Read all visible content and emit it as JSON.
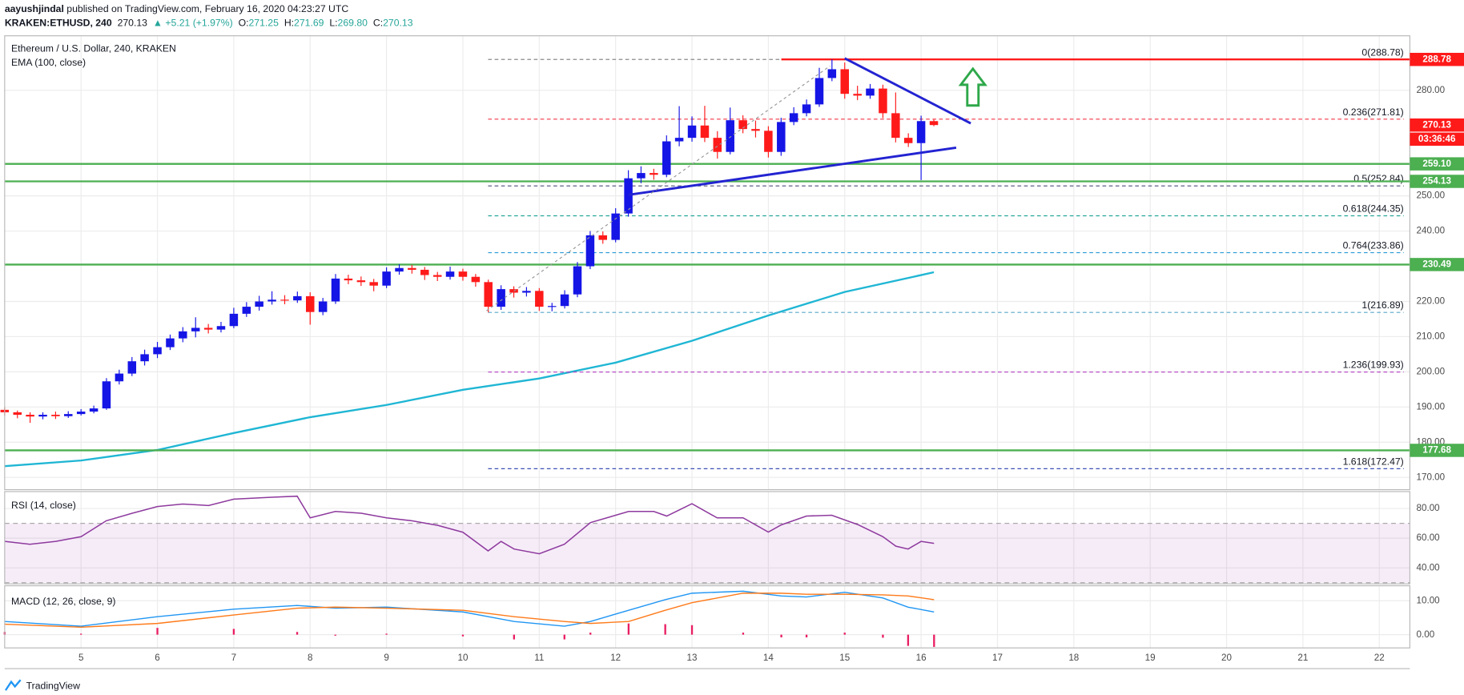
{
  "header": {
    "author": "aayushjindal",
    "published": "published on TradingView.com, February 16, 2020 04:23:27 UTC",
    "symbol": "KRAKEN:ETHUSD, 240",
    "price": "270.13",
    "change": "▲ +5.21 (+1.97%)",
    "ohlc": [
      {
        "label": "O:",
        "value": "271.25"
      },
      {
        "label": "H:",
        "value": "271.69"
      },
      {
        "label": "L:",
        "value": "269.80"
      },
      {
        "label": "C:",
        "value": "270.13"
      }
    ]
  },
  "footer": "TradingView",
  "chart_data": [
    {
      "type": "candlestick",
      "title": "Ethereum / U.S. Dollar, 240, KRAKEN",
      "up_color": "#1515e6",
      "down_color": "#ff1a1a",
      "x": [
        4,
        4.167,
        4.333,
        4.5,
        4.667,
        4.833,
        5,
        5.167,
        5.333,
        5.5,
        5.667,
        5.833,
        6,
        6.167,
        6.333,
        6.5,
        6.667,
        6.833,
        7,
        7.167,
        7.333,
        7.5,
        7.667,
        7.833,
        8,
        8.167,
        8.333,
        8.5,
        8.667,
        8.833,
        9,
        9.167,
        9.333,
        9.5,
        9.667,
        9.833,
        10,
        10.167,
        10.333,
        10.5,
        10.667,
        10.833,
        11,
        11.167,
        11.333,
        11.5,
        11.667,
        11.833,
        12,
        12.167,
        12.333,
        12.5,
        12.667,
        12.833,
        13,
        13.167,
        13.333,
        13.5,
        13.667,
        13.833,
        14,
        14.167,
        14.333,
        14.5,
        14.667,
        14.833,
        15,
        15.167,
        15.333,
        15.5,
        15.667,
        15.833,
        16,
        16.167
      ],
      "open": [
        189.2,
        188.5,
        187.8,
        187.3,
        187.8,
        187.4,
        188.0,
        188.7,
        189.6,
        197.3,
        199.5,
        203,
        205,
        207,
        209.5,
        211.5,
        212.5,
        212,
        213,
        216.5,
        218.5,
        220,
        220.5,
        220.3,
        221.5,
        217,
        220,
        226.5,
        226,
        225.5,
        224.5,
        228.5,
        229.5,
        229,
        227.5,
        227,
        228.5,
        227,
        225.5,
        218.5,
        223.5,
        222.5,
        223,
        218.5,
        218.7,
        222,
        230,
        238.8,
        237.5,
        245,
        255,
        256.5,
        256,
        265.5,
        266.5,
        270,
        266.5,
        262.5,
        271.5,
        269,
        268.5,
        262.5,
        271,
        273.5,
        276,
        283.5,
        286,
        279,
        278.5,
        280.5,
        273.5,
        266.5,
        265,
        271.25
      ],
      "high": [
        190,
        189,
        188.5,
        188.5,
        188.7,
        188.8,
        189.4,
        190.4,
        198.2,
        200.6,
        204.2,
        206.3,
        208.5,
        210.6,
        212.7,
        215.5,
        213.6,
        214.2,
        218.2,
        219.8,
        221.6,
        222.9,
        221.8,
        222.8,
        222.6,
        221,
        227.8,
        227.6,
        227.1,
        226.4,
        229.7,
        230.6,
        230.4,
        229.8,
        228.4,
        229.9,
        229.3,
        227.8,
        226.2,
        224.6,
        224.3,
        224.1,
        223.8,
        219.6,
        223.2,
        231.2,
        240,
        239.9,
        246.5,
        257.3,
        258.4,
        257.7,
        267.2,
        275.5,
        272.6,
        275.6,
        268.4,
        275.1,
        272.9,
        271.4,
        269.8,
        272.2,
        275.2,
        277.4,
        286.4,
        288.78,
        287.9,
        281.3,
        281.8,
        281.6,
        279.4,
        267.8,
        272.8,
        271.69
      ],
      "low": [
        187.5,
        186.8,
        185.5,
        186.5,
        186.6,
        186.9,
        187.6,
        188.2,
        189.2,
        196.4,
        198.8,
        201.8,
        203.9,
        206.2,
        208.4,
        209.8,
        210.9,
        211.2,
        212.4,
        215.6,
        217.4,
        219.1,
        219.2,
        219.6,
        213.4,
        216.1,
        219.3,
        224.9,
        224.4,
        222.9,
        223.8,
        227.6,
        227.9,
        226.1,
        225.8,
        226.2,
        225.9,
        224.2,
        216.89,
        217.6,
        221.1,
        221.4,
        217.3,
        217.2,
        218,
        221.2,
        229.2,
        236.4,
        236.8,
        244.1,
        253.6,
        254.6,
        255.3,
        264.1,
        265.4,
        265.3,
        260.6,
        261.8,
        267.8,
        266.6,
        260.9,
        261.4,
        270.1,
        272.6,
        275.3,
        282.6,
        277.6,
        277.2,
        277.6,
        272.1,
        265.2,
        263.9,
        254.5,
        269.8
      ],
      "close": [
        188.5,
        187.8,
        187.3,
        187.8,
        187.4,
        188.0,
        188.7,
        189.6,
        197.3,
        199.5,
        203,
        205,
        207,
        209.5,
        211.5,
        212.5,
        212,
        213,
        216.5,
        218.5,
        220,
        220.5,
        220.3,
        221.5,
        217,
        220,
        226.5,
        226,
        225.5,
        224.5,
        228.5,
        229.5,
        229,
        227.5,
        227,
        228.5,
        227,
        225.5,
        218.5,
        223.5,
        222.5,
        223,
        218.5,
        218.7,
        222,
        230,
        238.8,
        237.5,
        245,
        255,
        256.5,
        256,
        265.5,
        266.5,
        270,
        266.5,
        262.5,
        271.5,
        269,
        268.5,
        262.5,
        271,
        273.5,
        276,
        283.5,
        286,
        279,
        278.5,
        280.5,
        273.5,
        266.5,
        265,
        271.25,
        270.13
      ],
      "ema": {
        "name": "EMA (100, close)",
        "color": "#1fb6d4",
        "x": [
          4,
          5,
          6,
          7,
          8,
          9,
          10,
          11,
          12,
          13,
          14,
          15,
          16,
          16.167
        ],
        "values": [
          173.2,
          174.8,
          177.8,
          182.6,
          187.1,
          190.6,
          194.9,
          198.1,
          202.6,
          208.8,
          216,
          222.7,
          227.5,
          228.3
        ]
      },
      "fib": [
        {
          "label": "0(288.78)",
          "value": 288.78,
          "color": "#8a8a8a",
          "x_range": [
            10.33,
            22.32
          ]
        },
        {
          "label": "0.236(271.81)",
          "value": 271.81,
          "color": "#f23645",
          "x_range": [
            10.33,
            22.32
          ]
        },
        {
          "label": "0.5(252.84)",
          "value": 252.84,
          "color": "#4a4f7a",
          "x_range": [
            10.33,
            22.32
          ]
        },
        {
          "label": "0.618(244.35)",
          "value": 244.35,
          "color": "#26a69a",
          "x_range": [
            10.33,
            22.32
          ]
        },
        {
          "label": "0.764(233.86)",
          "value": 233.86,
          "color": "#2a9bd6",
          "x_range": [
            10.33,
            22.32
          ]
        },
        {
          "label": "1(216.89)",
          "value": 216.89,
          "color": "#5aa8c8",
          "x_range": [
            10.33,
            22.32
          ]
        },
        {
          "label": "1.236(199.93)",
          "value": 199.93,
          "color": "#b33bc2",
          "x_range": [
            10.33,
            22.32
          ]
        },
        {
          "label": "1.618(172.47)",
          "value": 172.47,
          "color": "#3f51b5",
          "x_range": [
            10.33,
            22.32
          ]
        }
      ],
      "levels": [
        {
          "value": 288.78,
          "label": "288.78",
          "color": "#ff1a1a",
          "x_start": 14.17
        },
        {
          "value": 259.1,
          "label": "259.10",
          "color": "#4caf50"
        },
        {
          "value": 254.13,
          "label": "254.13",
          "color": "#4caf50"
        },
        {
          "value": 230.49,
          "label": "230.49",
          "color": "#4caf50"
        },
        {
          "value": 177.68,
          "label": "177.68",
          "color": "#4caf50"
        }
      ],
      "last_price": {
        "value": 270.13,
        "label": "270.13",
        "color": "#ff1a1a"
      },
      "countdown": "03:36:46",
      "trendlines": [
        {
          "x": [
            15.0,
            16.65
          ],
          "values": [
            289.1,
            270.6
          ]
        },
        {
          "x": [
            12.17,
            16.46
          ],
          "values": [
            250.3,
            263.7
          ]
        }
      ],
      "trendline_color": "#2323d2",
      "xlim": [
        4.0,
        22.4
      ],
      "xticks": [
        5,
        6,
        7,
        8,
        9,
        10,
        11,
        12,
        13,
        14,
        15,
        16,
        17,
        18,
        19,
        20,
        21,
        22
      ],
      "ylim": [
        166.5,
        295.5
      ],
      "yticks": [
        {
          "value": 170,
          "label": "170.00"
        },
        {
          "value": 180,
          "label": "180.00"
        },
        {
          "value": 190,
          "label": "190.00"
        },
        {
          "value": 200,
          "label": "200.00"
        },
        {
          "value": 210,
          "label": "210.00"
        },
        {
          "value": 220,
          "label": "220.00"
        },
        {
          "value": 240,
          "label": "240.00"
        },
        {
          "value": 250,
          "label": "250.00"
        },
        {
          "value": 280,
          "label": "280.00"
        }
      ],
      "grid": true
    },
    {
      "type": "line",
      "title": "RSI (14, close)",
      "color": "#8e3a9e",
      "band": [
        30,
        70
      ],
      "band_color": "#9c27b0",
      "x": [
        4,
        4.33,
        4.67,
        5,
        5.33,
        5.67,
        6,
        6.33,
        6.67,
        7,
        7.5,
        7.83,
        8,
        8.33,
        8.67,
        9,
        9.33,
        9.67,
        10,
        10.33,
        10.5,
        10.67,
        11,
        11.33,
        11.67,
        12.17,
        12.5,
        12.67,
        13,
        13.33,
        13.67,
        14,
        14.17,
        14.5,
        14.83,
        15.17,
        15.5,
        15.67,
        15.83,
        16,
        16.17
      ],
      "values": [
        57.8,
        55.9,
        57.8,
        61,
        71.7,
        76.8,
        81.3,
        83,
        82,
        86.3,
        87.6,
        88.3,
        73.7,
        78,
        76.8,
        73.7,
        71.7,
        68.6,
        64,
        51.4,
        57.8,
        52.7,
        49.5,
        55.9,
        70.5,
        78,
        78,
        74.9,
        83.2,
        73.7,
        73.7,
        64.1,
        69,
        74.9,
        75.5,
        69.2,
        61,
        54.6,
        52.7,
        57.8,
        56.5
      ],
      "ylim": [
        29.2,
        91.4
      ],
      "yticks": [
        {
          "value": 40,
          "label": "40.00"
        },
        {
          "value": 60,
          "label": "60.00"
        },
        {
          "value": 80,
          "label": "80.00"
        }
      ],
      "grid": true
    },
    {
      "type": "macd",
      "title": "MACD (12, 26, close, 9)",
      "x": [
        4,
        5,
        6,
        7,
        7.83,
        8.33,
        9,
        10,
        10.67,
        11.33,
        11.67,
        12.17,
        12.65,
        13,
        13.67,
        14.17,
        14.5,
        15,
        15.5,
        15.83,
        16.17
      ],
      "series": [
        {
          "color": "#2196f3",
          "values": [
            3.9,
            2.5,
            5.3,
            7.5,
            8.6,
            7.8,
            8.1,
            6.7,
            3.9,
            2.5,
            3.9,
            7.2,
            10.3,
            12.2,
            12.8,
            11.4,
            11.1,
            12.5,
            10.8,
            8.1,
            6.7
          ]
        },
        {
          "color": "#ff7a1a",
          "values": [
            3.1,
            2.2,
            3.3,
            5.8,
            7.8,
            8.1,
            7.8,
            7.2,
            5.3,
            3.9,
            3.3,
            3.9,
            7.2,
            9.4,
            12.2,
            12.2,
            11.9,
            11.9,
            11.7,
            11.4,
            10.3
          ]
        }
      ],
      "histogram": {
        "color": "#e91e63",
        "values": [
          0.8,
          0.3,
          2,
          1.7,
          0.8,
          -0.3,
          0.3,
          -0.5,
          -1.4,
          -1.4,
          0.6,
          3.3,
          3.1,
          2.8,
          0.6,
          -0.8,
          -0.8,
          0.6,
          -0.9,
          -3.3,
          -3.6
        ]
      },
      "ylim": [
        -3.9,
        14.4
      ],
      "yticks": [
        {
          "value": 0,
          "label": "0.00"
        },
        {
          "value": 10,
          "label": "10.00"
        }
      ],
      "grid": true
    }
  ]
}
